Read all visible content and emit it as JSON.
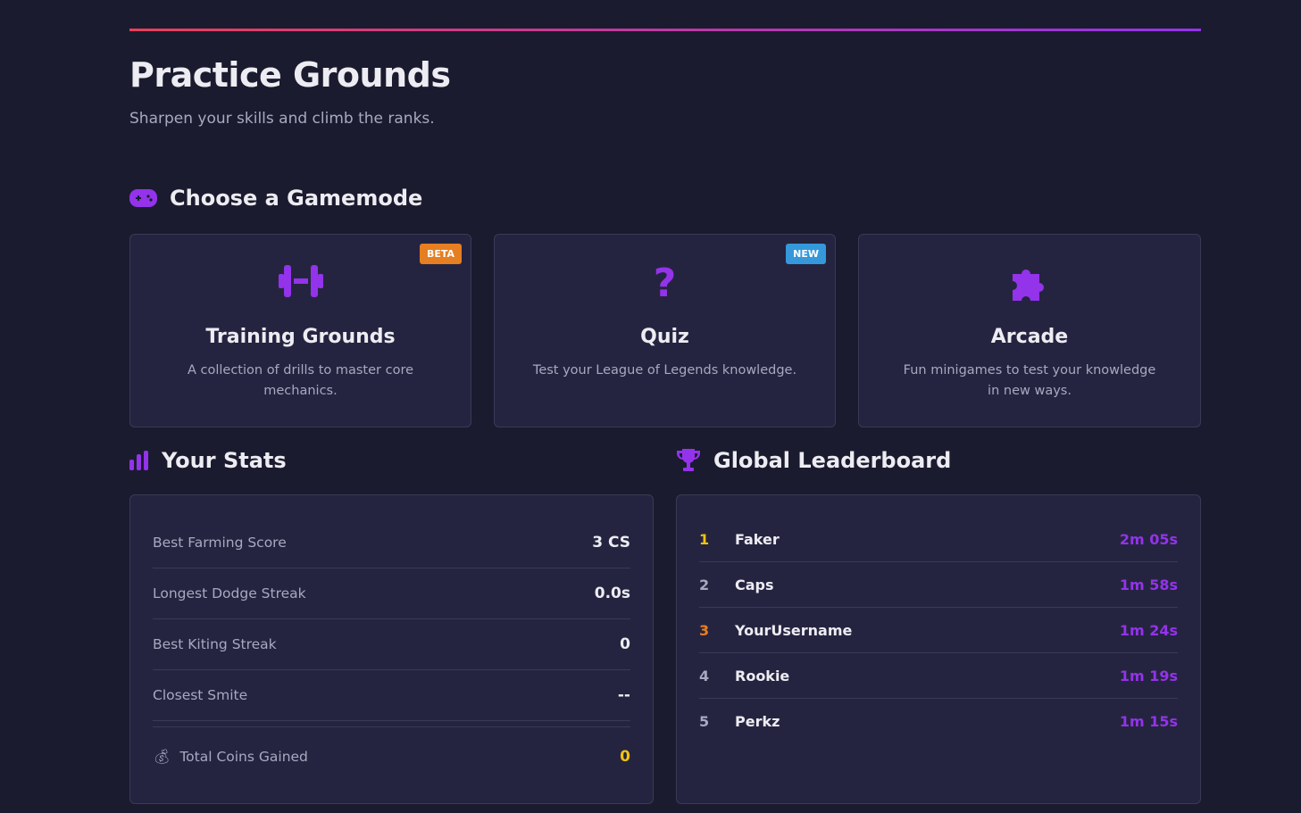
{
  "header": {
    "title": "Practice Grounds",
    "subtitle": "Sharpen your skills and climb the ranks."
  },
  "gamemodes": {
    "heading": "Choose a Gamemode",
    "icon": "gamepad-icon",
    "cards": [
      {
        "title": "Training Grounds",
        "description": "A collection of drills to master core mechanics.",
        "badge": "BETA",
        "badge_color": "#e67e22",
        "icon": "dumbbell-icon"
      },
      {
        "title": "Quiz",
        "description": "Test your League of Legends knowledge.",
        "badge": "NEW",
        "badge_color": "#3498db",
        "icon": "question-icon"
      },
      {
        "title": "Arcade",
        "description": "Fun minigames to test your knowledge in new ways.",
        "icon": "puzzle-icon"
      }
    ]
  },
  "stats": {
    "heading": "Your Stats",
    "icon": "bar-chart-icon",
    "rows": [
      {
        "label": "Best Farming Score",
        "value": "3 CS"
      },
      {
        "label": "Longest Dodge Streak",
        "value": "0.0s"
      },
      {
        "label": "Best Kiting Streak",
        "value": "0"
      },
      {
        "label": "Closest Smite",
        "value": "--"
      }
    ],
    "coins": {
      "label": "Total Coins Gained",
      "value": "0",
      "icon": "money-bag-icon"
    }
  },
  "leaderboard": {
    "heading": "Global Leaderboard",
    "icon": "trophy-icon",
    "entries": [
      {
        "rank": "1",
        "name": "Faker",
        "time": "2m 05s",
        "rank_color": "#f1c40f"
      },
      {
        "rank": "2",
        "name": "Caps",
        "time": "1m 58s",
        "rank_color": "#a8a8c0"
      },
      {
        "rank": "3",
        "name": "YourUsername",
        "time": "1m 24s",
        "rank_color": "#e67e22"
      },
      {
        "rank": "4",
        "name": "Rookie",
        "time": "1m 19s",
        "rank_color": "#a8a8c0"
      },
      {
        "rank": "5",
        "name": "Perkz",
        "time": "1m 15s",
        "rank_color": "#a8a8c0"
      }
    ]
  },
  "colors": {
    "accent": "#9333ea",
    "coins": "#f1c40f"
  }
}
